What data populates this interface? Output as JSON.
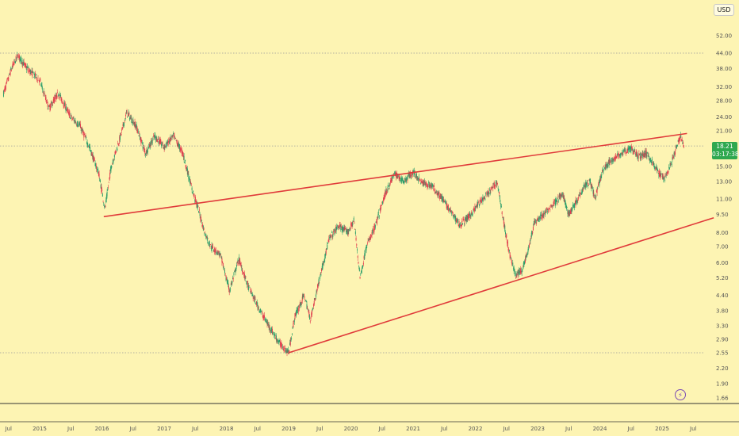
{
  "header": {
    "currency_label": "USD"
  },
  "last_price": {
    "value": "18.21",
    "countdown": "03:17:38",
    "price": 18.21,
    "color": "#2fa84f"
  },
  "colors": {
    "background": "#fdf4b3",
    "up": "#2e9e6b",
    "down": "#e0404f",
    "trendline": "#e03a3a"
  },
  "icons": {
    "replay": "lightning-icon"
  },
  "chart_data": {
    "type": "candlestick",
    "title": "",
    "xlabel": "",
    "ylabel": "",
    "y_scale": "log",
    "y_ticks": [
      "52.00",
      "44.00",
      "38.00",
      "32.00",
      "28.00",
      "24.00",
      "21.00",
      "18.00",
      "15.00",
      "13.00",
      "11.00",
      "9.50",
      "8.00",
      "7.00",
      "6.00",
      "5.20",
      "4.40",
      "3.80",
      "3.30",
      "2.90",
      "2.55",
      "2.20",
      "1.90",
      "1.66"
    ],
    "x_ticks": [
      "Jul",
      "2015",
      "Jul",
      "2016",
      "Jul",
      "2017",
      "Jul",
      "2018",
      "Jul",
      "2019",
      "Jul",
      "2020",
      "Jul",
      "2021",
      "Jul",
      "2022",
      "Jul",
      "2023",
      "Jul",
      "2024",
      "Jul",
      "2025",
      "Jul"
    ],
    "x_range": [
      2014.42,
      2025.83
    ],
    "horizontal_levels": [
      44.0,
      18.21,
      2.55
    ],
    "price_path": [
      [
        2014.42,
        30
      ],
      [
        2014.55,
        38
      ],
      [
        2014.65,
        43
      ],
      [
        2014.8,
        38
      ],
      [
        2015.0,
        34
      ],
      [
        2015.15,
        26
      ],
      [
        2015.3,
        30
      ],
      [
        2015.5,
        24
      ],
      [
        2015.65,
        22
      ],
      [
        2015.8,
        18
      ],
      [
        2015.95,
        14
      ],
      [
        2016.05,
        10
      ],
      [
        2016.15,
        15
      ],
      [
        2016.3,
        20
      ],
      [
        2016.4,
        25
      ],
      [
        2016.55,
        22
      ],
      [
        2016.7,
        17
      ],
      [
        2016.85,
        20
      ],
      [
        2017.0,
        18
      ],
      [
        2017.15,
        20
      ],
      [
        2017.3,
        17
      ],
      [
        2017.45,
        12
      ],
      [
        2017.55,
        10
      ],
      [
        2017.65,
        8
      ],
      [
        2017.75,
        7
      ],
      [
        2017.9,
        6.5
      ],
      [
        2018.05,
        4.6
      ],
      [
        2018.2,
        6.2
      ],
      [
        2018.35,
        4.8
      ],
      [
        2018.5,
        4.0
      ],
      [
        2018.65,
        3.4
      ],
      [
        2018.85,
        2.8
      ],
      [
        2019.0,
        2.55
      ],
      [
        2019.1,
        3.6
      ],
      [
        2019.25,
        4.4
      ],
      [
        2019.35,
        3.5
      ],
      [
        2019.5,
        5.2
      ],
      [
        2019.65,
        7.5
      ],
      [
        2019.8,
        8.5
      ],
      [
        2019.95,
        8.0
      ],
      [
        2020.05,
        9.0
      ],
      [
        2020.15,
        5.2
      ],
      [
        2020.25,
        7.0
      ],
      [
        2020.4,
        8.6
      ],
      [
        2020.55,
        11.5
      ],
      [
        2020.7,
        14
      ],
      [
        2020.85,
        13
      ],
      [
        2021.0,
        14.2
      ],
      [
        2021.15,
        12.8
      ],
      [
        2021.3,
        12.5
      ],
      [
        2021.45,
        11.2
      ],
      [
        2021.6,
        9.8
      ],
      [
        2021.75,
        8.6
      ],
      [
        2021.9,
        9.3
      ],
      [
        2022.05,
        10.5
      ],
      [
        2022.2,
        11.5
      ],
      [
        2022.35,
        13.0
      ],
      [
        2022.45,
        9.0
      ],
      [
        2022.55,
        6.5
      ],
      [
        2022.65,
        5.3
      ],
      [
        2022.75,
        5.6
      ],
      [
        2022.85,
        6.8
      ],
      [
        2022.95,
        8.8
      ],
      [
        2023.1,
        9.5
      ],
      [
        2023.25,
        10.5
      ],
      [
        2023.4,
        11.5
      ],
      [
        2023.5,
        9.5
      ],
      [
        2023.6,
        10.5
      ],
      [
        2023.75,
        12.5
      ],
      [
        2023.85,
        13.0
      ],
      [
        2023.92,
        11.0
      ],
      [
        2024.05,
        14.5
      ],
      [
        2024.2,
        16.0
      ],
      [
        2024.35,
        17.0
      ],
      [
        2024.5,
        17.8
      ],
      [
        2024.62,
        16.5
      ],
      [
        2024.75,
        17.0
      ],
      [
        2024.85,
        15.5
      ],
      [
        2024.95,
        14.0
      ],
      [
        2025.05,
        13.5
      ],
      [
        2025.15,
        15.5
      ],
      [
        2025.25,
        18.5
      ],
      [
        2025.3,
        20.0
      ],
      [
        2025.35,
        18.21
      ]
    ],
    "trendlines": [
      {
        "from": [
          2016.03,
          9.3
        ],
        "to": [
          2025.4,
          20.5
        ]
      },
      {
        "from": [
          2019.0,
          2.55
        ],
        "to": [
          2025.83,
          9.2
        ]
      }
    ]
  }
}
